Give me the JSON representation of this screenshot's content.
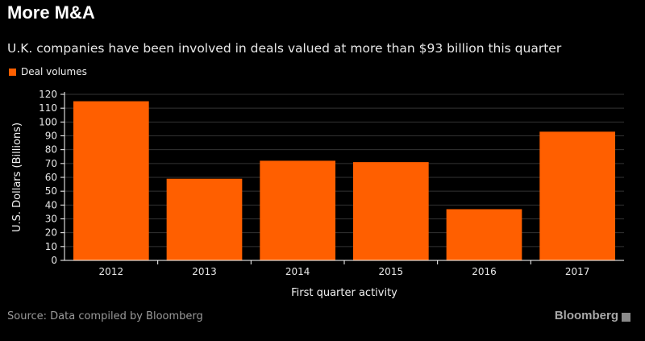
{
  "header": {
    "title": "More M&A",
    "subtitle": "U.K. companies have been involved in deals valued at more than $93 billion this quarter"
  },
  "footer": {
    "source": "Source: Data compiled by Bloomberg",
    "brand": "Bloomberg"
  },
  "colors": {
    "bar": "#FF5F00",
    "background": "#000000",
    "axis": "#FFFFFF",
    "grid": "#333333"
  },
  "chart_data": {
    "type": "bar",
    "title": "More M&A",
    "subtitle": "U.K. companies have been involved in deals valued at more than $93 billion this quarter",
    "xlabel": "First quarter activity",
    "ylabel": "U.S. Dollars (Billions)",
    "categories": [
      "2012",
      "2013",
      "2014",
      "2015",
      "2016",
      "2017"
    ],
    "series": [
      {
        "name": "Deal volumes",
        "values": [
          115,
          59,
          72,
          71,
          37,
          93
        ]
      }
    ],
    "ylim": [
      0,
      120
    ],
    "yticks": [
      0,
      10,
      20,
      30,
      40,
      50,
      60,
      70,
      80,
      90,
      100,
      110,
      120
    ],
    "grid": true,
    "legend_position": "top-left"
  }
}
